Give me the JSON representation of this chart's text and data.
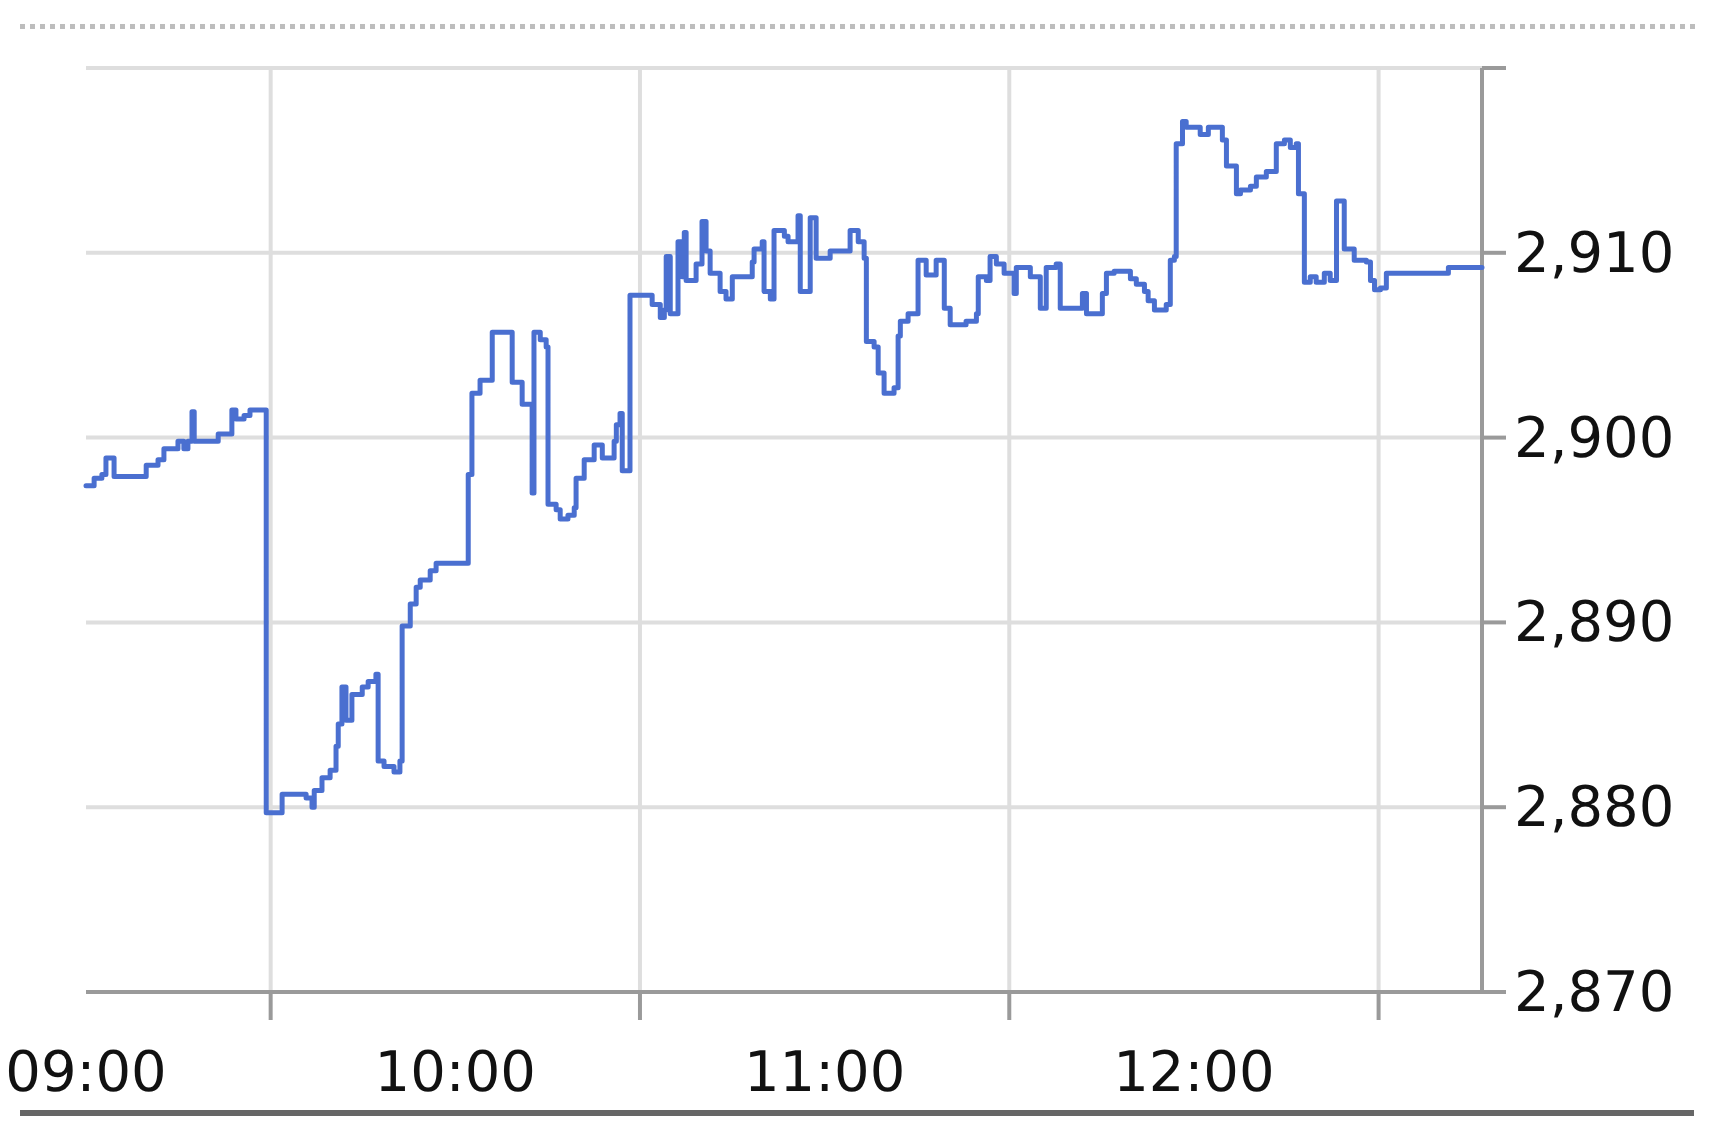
{
  "chart_data": {
    "type": "step",
    "color": "#4a6fd0",
    "x": [
      9.0,
      9.022,
      9.043,
      9.054,
      9.076,
      9.163,
      9.195,
      9.211,
      9.249,
      9.265,
      9.276,
      9.287,
      9.293,
      9.358,
      9.395,
      9.406,
      9.428,
      9.444,
      9.488,
      9.531,
      9.596,
      9.612,
      9.618,
      9.639,
      9.661,
      9.677,
      9.683,
      9.693,
      9.704,
      9.72,
      9.748,
      9.764,
      9.785,
      9.791,
      9.807,
      9.834,
      9.85,
      9.856,
      9.878,
      9.894,
      9.905,
      9.932,
      9.948,
      10.035,
      10.045,
      10.067,
      10.1,
      10.154,
      10.181,
      10.208,
      10.213,
      10.23,
      10.246,
      10.251,
      10.273,
      10.284,
      10.305,
      10.322,
      10.327,
      10.349,
      10.376,
      10.398,
      10.43,
      10.436,
      10.446,
      10.452,
      10.473,
      10.533,
      10.555,
      10.566,
      10.571,
      10.582,
      10.603,
      10.614,
      10.62,
      10.625,
      10.652,
      10.668,
      10.679,
      10.69,
      10.717,
      10.733,
      10.75,
      10.804,
      10.809,
      10.831,
      10.836,
      10.853,
      10.863,
      10.891,
      10.901,
      10.928,
      10.934,
      10.961,
      10.977,
      11.015,
      11.069,
      11.091,
      11.107,
      11.113,
      11.134,
      11.145,
      11.161,
      11.188,
      11.199,
      11.205,
      11.226,
      11.253,
      11.275,
      11.302,
      11.324,
      11.34,
      11.383,
      11.411,
      11.416,
      11.438,
      11.448,
      11.465,
      11.486,
      11.513,
      11.519,
      11.557,
      11.584,
      11.6,
      11.627,
      11.638,
      11.698,
      11.709,
      11.752,
      11.763,
      11.784,
      11.828,
      11.844,
      11.866,
      11.876,
      11.893,
      11.925,
      11.936,
      11.947,
      11.952,
      11.969,
      11.979,
      12.017,
      12.039,
      12.077,
      12.088,
      12.115,
      12.126,
      12.153,
      12.169,
      12.196,
      12.223,
      12.245,
      12.261,
      12.277,
      12.283,
      12.299,
      12.315,
      12.331,
      12.353,
      12.369,
      12.386,
      12.407,
      12.434,
      12.467,
      12.478,
      12.489,
      12.505,
      12.521,
      12.689,
      12.78
    ],
    "values": [
      2897.4,
      2897.8,
      2898.0,
      2898.9,
      2897.9,
      2898.5,
      2898.8,
      2899.4,
      2899.8,
      2899.4,
      2899.8,
      2901.4,
      2899.8,
      2900.2,
      2901.5,
      2901.0,
      2901.2,
      2901.5,
      2879.7,
      2880.7,
      2880.5,
      2880.0,
      2880.9,
      2881.6,
      2882.0,
      2883.3,
      2884.5,
      2886.5,
      2884.7,
      2886.1,
      2886.5,
      2886.8,
      2887.2,
      2882.5,
      2882.2,
      2881.9,
      2882.5,
      2889.8,
      2891.0,
      2891.9,
      2892.3,
      2892.8,
      2893.2,
      2898.0,
      2902.4,
      2903.1,
      2905.7,
      2903.0,
      2901.8,
      2897.0,
      2905.7,
      2905.3,
      2904.9,
      2896.4,
      2896.1,
      2895.6,
      2895.8,
      2896.2,
      2897.8,
      2898.8,
      2899.6,
      2898.9,
      2899.8,
      2900.7,
      2901.3,
      2898.2,
      2907.7,
      2907.2,
      2906.5,
      2906.9,
      2909.8,
      2906.7,
      2910.6,
      2908.7,
      2911.1,
      2908.5,
      2909.4,
      2911.7,
      2910.1,
      2908.9,
      2907.9,
      2907.5,
      2908.7,
      2909.5,
      2910.2,
      2910.6,
      2907.9,
      2907.5,
      2911.2,
      2910.9,
      2910.6,
      2912.0,
      2907.9,
      2911.9,
      2909.7,
      2910.1,
      2911.2,
      2910.6,
      2909.7,
      2905.2,
      2904.9,
      2903.5,
      2902.4,
      2902.7,
      2905.5,
      2906.3,
      2906.7,
      2909.6,
      2908.8,
      2909.6,
      2907.0,
      2906.1,
      2906.3,
      2906.7,
      2908.7,
      2908.5,
      2909.8,
      2909.4,
      2908.9,
      2907.8,
      2909.2,
      2908.7,
      2907.0,
      2909.2,
      2909.4,
      2907.0,
      2907.8,
      2906.7,
      2907.8,
      2908.9,
      2909.0,
      2908.6,
      2908.3,
      2907.9,
      2907.4,
      2906.9,
      2907.2,
      2909.6,
      2909.8,
      2915.9,
      2917.1,
      2916.8,
      2916.4,
      2916.8,
      2916.1,
      2914.7,
      2913.2,
      2913.4,
      2913.6,
      2914.1,
      2914.4,
      2915.9,
      2916.1,
      2915.7,
      2915.9,
      2913.2,
      2908.4,
      2908.7,
      2908.4,
      2908.9,
      2908.5,
      2912.8,
      2910.2,
      2909.6,
      2909.5,
      2908.5,
      2908.0,
      2908.1,
      2908.9,
      2909.2,
      2909.2
    ],
    "xlim": [
      9,
      12.78
    ],
    "xticks": [
      {
        "value": 9,
        "label": "09:00"
      },
      {
        "value": 9.5,
        "label": null
      },
      {
        "value": 10,
        "label": "10:00"
      },
      {
        "value": 10.5,
        "label": null
      },
      {
        "value": 11,
        "label": "11:00"
      },
      {
        "value": 11.5,
        "label": null
      },
      {
        "value": 12,
        "label": "12:00"
      },
      {
        "value": 12.5,
        "label": null
      }
    ],
    "ylim": [
      2870,
      2920
    ],
    "yticks": [
      {
        "value": 2870,
        "label": "2,870"
      },
      {
        "value": 2880,
        "label": "2,880"
      },
      {
        "value": 2890,
        "label": "2,890"
      },
      {
        "value": 2900,
        "label": "2,900"
      },
      {
        "value": 2910,
        "label": "2,910"
      },
      {
        "value": 2920,
        "label": null
      }
    ],
    "grid": true
  }
}
